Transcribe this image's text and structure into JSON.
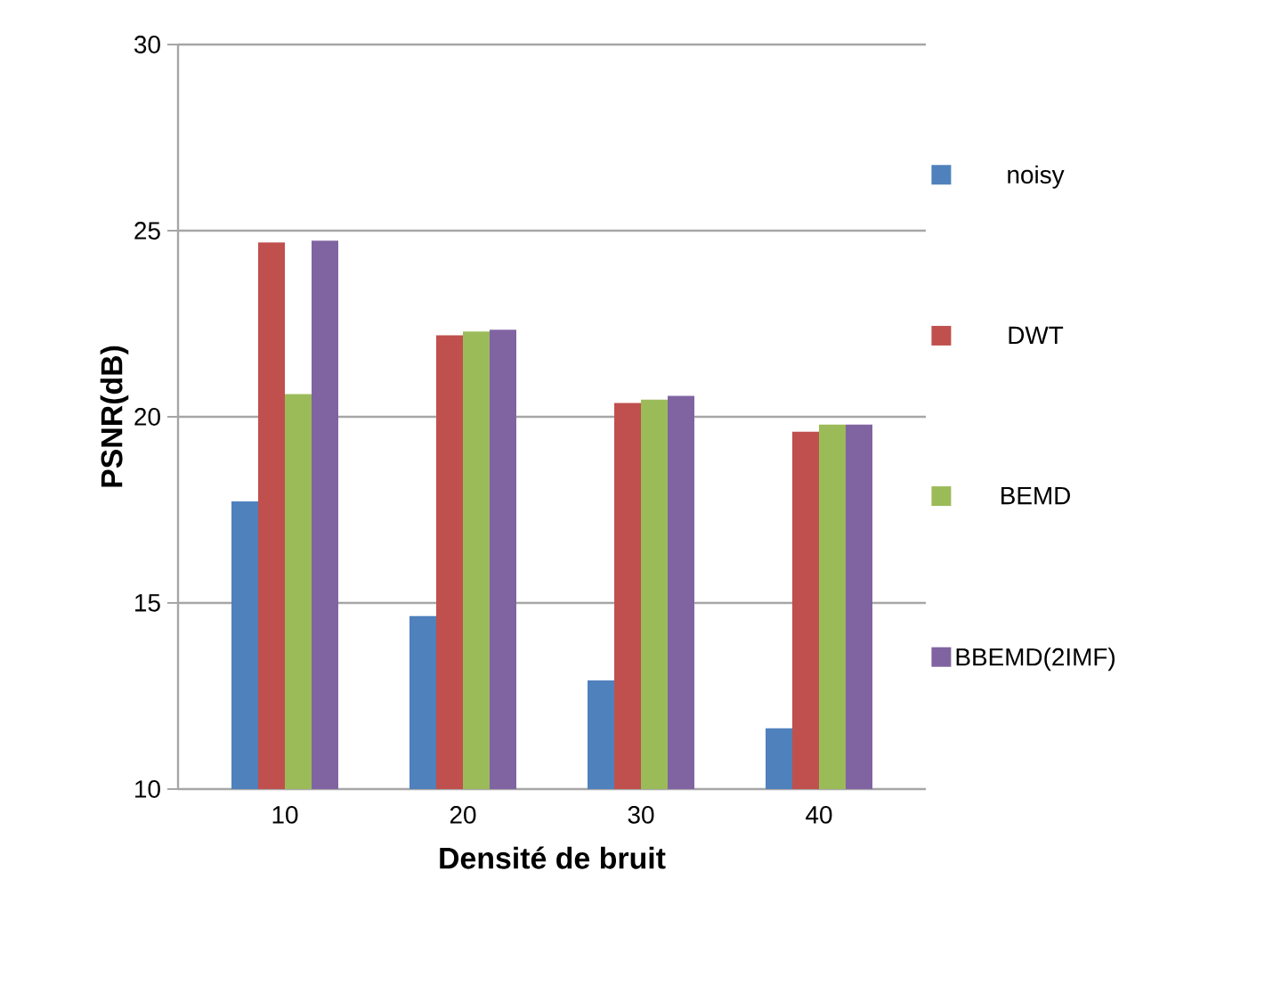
{
  "chart_data": {
    "type": "bar",
    "xlabel": "Densité de bruit",
    "ylabel": "PSNR(dB)",
    "categories": [
      "10",
      "20",
      "30",
      "40"
    ],
    "series": [
      {
        "name": "noisy",
        "color": "#4f81bd",
        "values": [
          17.73,
          14.65,
          12.92,
          11.63
        ]
      },
      {
        "name": "DWT",
        "color": "#c0504d",
        "values": [
          24.68,
          22.19,
          20.37,
          19.6
        ]
      },
      {
        "name": "BEMD",
        "color": "#9bbb59",
        "values": [
          20.61,
          22.29,
          20.46,
          19.79
        ]
      },
      {
        "name": "BBEMD(2IMF)",
        "color": "#8064a2",
        "values": [
          24.73,
          22.34,
          20.56,
          19.79
        ]
      }
    ],
    "ylim": [
      10,
      30
    ],
    "yticks": [
      10,
      15,
      20,
      25,
      30
    ],
    "grid": "y",
    "legend": "right"
  }
}
